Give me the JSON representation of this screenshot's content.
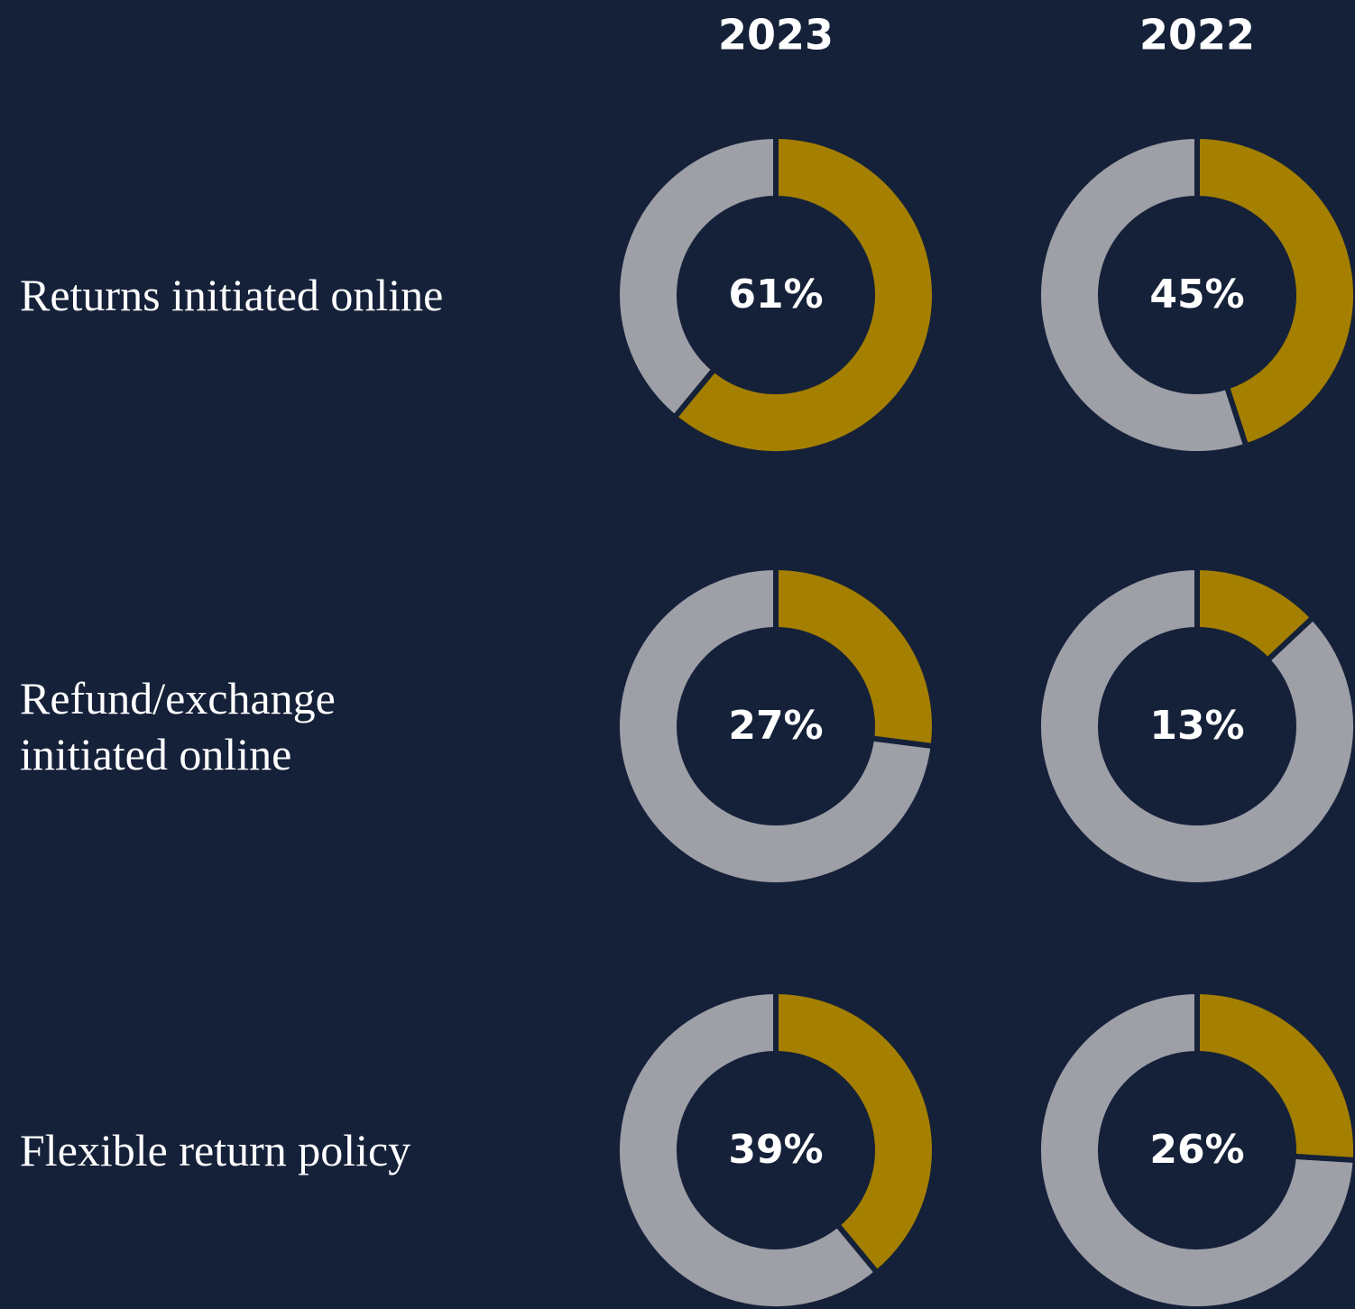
{
  "chart_data": {
    "type": "donut",
    "categories": [
      "Returns initiated online",
      "Refund/exchange\ninitiated online",
      "Flexible return policy"
    ],
    "series": [
      {
        "name": "2023",
        "color": "#a47f00",
        "values": [
          61,
          27,
          39
        ],
        "value_labels": [
          "61%",
          "27%",
          "39%"
        ]
      },
      {
        "name": "2022",
        "color": "#a47f00",
        "values": [
          45,
          13,
          26
        ],
        "value_labels": [
          "45%",
          "13%",
          "26%"
        ]
      }
    ],
    "remainder_color": "#9e9fa7"
  }
}
